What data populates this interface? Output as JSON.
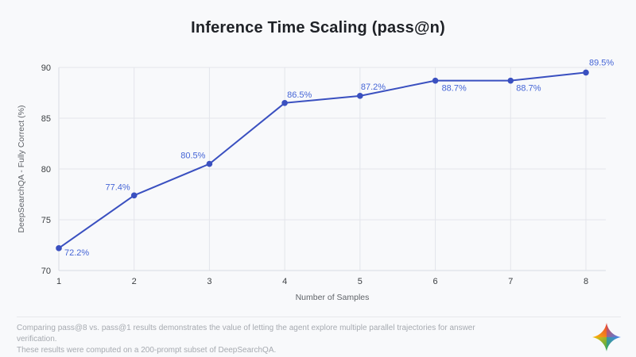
{
  "page": {
    "background": "#f8f9fb"
  },
  "title": "Inference Time Scaling (pass@n)",
  "chart_data": {
    "type": "line",
    "title": "Inference Time Scaling (pass@n)",
    "x": [
      1,
      2,
      3,
      4,
      5,
      6,
      7,
      8
    ],
    "series": [
      {
        "name": "pass@n",
        "values": [
          72.2,
          77.4,
          80.5,
          86.5,
          87.2,
          88.7,
          88.7,
          89.5
        ]
      }
    ],
    "point_labels": [
      "72.2%",
      "77.4%",
      "80.5%",
      "86.5%",
      "87.2%",
      "88.7%",
      "88.7%",
      "89.5%"
    ],
    "xlabel": "Number of Samples",
    "ylabel": "DeepSearchQA - Fully Correct (%)",
    "xticks": [
      1,
      2,
      3,
      4,
      5,
      6,
      7,
      8
    ],
    "yticks": [
      70,
      75,
      80,
      85,
      90
    ],
    "xlim": [
      1,
      8
    ],
    "ylim": [
      70,
      90
    ],
    "grid": true,
    "legend": "none",
    "line_color": "#3a50c0",
    "point_label_color": "#4565d6",
    "tick_label_color": "#3c4043",
    "axis_title_color": "#5f6368",
    "grid_color": "#e3e5eb"
  },
  "footer": {
    "line1": "Comparing pass@8 vs. pass@1 results demonstrates the value of letting the agent explore multiple parallel trajectories for answer verification.",
    "line2": "These results were computed on a 200-prompt subset of DeepSearchQA."
  },
  "logo": {
    "name": "gemini-sparkle",
    "colors": {
      "top": "#ea4335",
      "right": "#4285f4",
      "bottom": "#34a853",
      "left": "#fbbc05"
    }
  }
}
